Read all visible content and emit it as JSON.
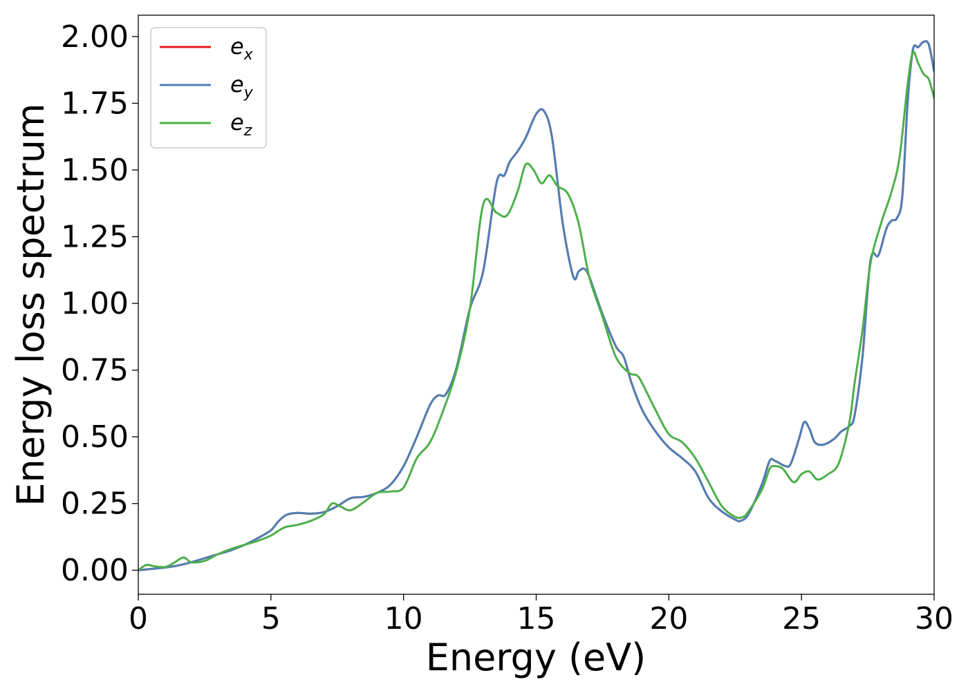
{
  "chart_data": {
    "type": "line",
    "xlabel": "Energy (eV)",
    "ylabel": "Energy loss spectrum",
    "xlim": [
      0,
      30
    ],
    "ylim": [
      -0.09,
      2.08
    ],
    "xticks": [
      "0",
      "5",
      "10",
      "15",
      "20",
      "25",
      "30"
    ],
    "yticks": [
      "0.00",
      "0.25",
      "0.50",
      "0.75",
      "1.00",
      "1.25",
      "1.50",
      "1.75",
      "2.00"
    ],
    "grid": false,
    "legend_position": "top-left",
    "series": [
      {
        "name": "e_x",
        "legend_base": "e",
        "legend_sub": "x",
        "color": "#e41a1c",
        "x": [
          0,
          0.5,
          1,
          1.5,
          2,
          2.5,
          3,
          3.5,
          4,
          4.5,
          5,
          5.3,
          5.6,
          6,
          6.5,
          7,
          7.5,
          8,
          8.5,
          9,
          9.5,
          10,
          10.5,
          11,
          11.3,
          11.6,
          12,
          12.5,
          13,
          13.5,
          13.8,
          14,
          14.3,
          14.6,
          15,
          15.3,
          15.6,
          16,
          16.4,
          16.6,
          16.8,
          17,
          17.5,
          18,
          18.3,
          18.6,
          19,
          19.5,
          20,
          20.5,
          21,
          21.5,
          22,
          22.5,
          22.7,
          23,
          23.5,
          23.8,
          24,
          24.4,
          24.6,
          24.9,
          25.1,
          25.3,
          25.5,
          25.8,
          26.2,
          26.5,
          26.8,
          27,
          27.3,
          27.6,
          27.9,
          28.2,
          28.4,
          28.6,
          28.8,
          29,
          29.2,
          29.4,
          29.6,
          29.8,
          30
        ],
        "y": [
          0,
          0.005,
          0.01,
          0.018,
          0.03,
          0.045,
          0.06,
          0.075,
          0.095,
          0.12,
          0.15,
          0.185,
          0.208,
          0.215,
          0.212,
          0.218,
          0.24,
          0.27,
          0.275,
          0.29,
          0.32,
          0.39,
          0.5,
          0.62,
          0.655,
          0.66,
          0.76,
          0.98,
          1.12,
          1.45,
          1.48,
          1.53,
          1.57,
          1.62,
          1.71,
          1.72,
          1.62,
          1.3,
          1.1,
          1.12,
          1.13,
          1.1,
          0.96,
          0.84,
          0.8,
          0.7,
          0.6,
          0.52,
          0.46,
          0.42,
          0.37,
          0.27,
          0.22,
          0.19,
          0.185,
          0.21,
          0.32,
          0.41,
          0.41,
          0.39,
          0.4,
          0.49,
          0.555,
          0.53,
          0.48,
          0.47,
          0.49,
          0.52,
          0.54,
          0.58,
          0.8,
          1.16,
          1.18,
          1.28,
          1.31,
          1.32,
          1.4,
          1.75,
          1.95,
          1.96,
          1.98,
          1.97,
          1.87
        ],
        "hidden_behind": "e_y"
      },
      {
        "name": "e_y",
        "legend_base": "e",
        "legend_sub": "y",
        "color": "#4e7fb4",
        "x": [
          0,
          0.5,
          1,
          1.5,
          2,
          2.5,
          3,
          3.5,
          4,
          4.5,
          5,
          5.3,
          5.6,
          6,
          6.5,
          7,
          7.5,
          8,
          8.5,
          9,
          9.5,
          10,
          10.5,
          11,
          11.3,
          11.6,
          12,
          12.5,
          13,
          13.5,
          13.8,
          14,
          14.3,
          14.6,
          15,
          15.3,
          15.6,
          16,
          16.4,
          16.6,
          16.8,
          17,
          17.5,
          18,
          18.3,
          18.6,
          19,
          19.5,
          20,
          20.5,
          21,
          21.5,
          22,
          22.5,
          22.7,
          23,
          23.5,
          23.8,
          24,
          24.4,
          24.6,
          24.9,
          25.1,
          25.3,
          25.5,
          25.8,
          26.2,
          26.5,
          26.8,
          27,
          27.3,
          27.6,
          27.9,
          28.2,
          28.4,
          28.6,
          28.8,
          29,
          29.2,
          29.4,
          29.6,
          29.8,
          30
        ],
        "y": [
          0,
          0.005,
          0.01,
          0.018,
          0.03,
          0.045,
          0.06,
          0.075,
          0.095,
          0.12,
          0.15,
          0.185,
          0.208,
          0.215,
          0.212,
          0.218,
          0.24,
          0.27,
          0.275,
          0.29,
          0.32,
          0.39,
          0.5,
          0.62,
          0.655,
          0.66,
          0.76,
          0.98,
          1.12,
          1.45,
          1.48,
          1.53,
          1.57,
          1.62,
          1.71,
          1.72,
          1.62,
          1.3,
          1.1,
          1.12,
          1.13,
          1.1,
          0.96,
          0.84,
          0.8,
          0.7,
          0.6,
          0.52,
          0.46,
          0.42,
          0.37,
          0.27,
          0.22,
          0.19,
          0.185,
          0.21,
          0.32,
          0.41,
          0.41,
          0.39,
          0.4,
          0.49,
          0.555,
          0.53,
          0.48,
          0.47,
          0.49,
          0.52,
          0.54,
          0.58,
          0.8,
          1.16,
          1.18,
          1.28,
          1.31,
          1.32,
          1.4,
          1.75,
          1.95,
          1.96,
          1.98,
          1.97,
          1.87
        ]
      },
      {
        "name": "e_z",
        "legend_base": "e",
        "legend_sub": "z",
        "color": "#4daf4a",
        "x": [
          0,
          0.3,
          0.6,
          1,
          1.3,
          1.7,
          2,
          2.5,
          3,
          3.5,
          4,
          4.5,
          5,
          5.5,
          6,
          6.5,
          7,
          7.3,
          7.6,
          8,
          8.5,
          9,
          9.5,
          10,
          10.5,
          11,
          11.5,
          12,
          12.5,
          13,
          13.5,
          13.9,
          14.3,
          14.6,
          14.9,
          15.2,
          15.5,
          15.8,
          16.2,
          16.6,
          17,
          17.5,
          18,
          18.5,
          18.8,
          19,
          19.5,
          20,
          20.5,
          21,
          21.5,
          22,
          22.5,
          22.8,
          23,
          23.5,
          23.8,
          24,
          24.3,
          24.7,
          25,
          25.3,
          25.6,
          26,
          26.4,
          26.8,
          27,
          27.3,
          27.6,
          28,
          28.4,
          28.7,
          29,
          29.2,
          29.4,
          29.6,
          29.8,
          30
        ],
        "y": [
          0,
          0.02,
          0.015,
          0.012,
          0.025,
          0.048,
          0.03,
          0.035,
          0.06,
          0.08,
          0.095,
          0.11,
          0.13,
          0.16,
          0.17,
          0.185,
          0.21,
          0.25,
          0.24,
          0.225,
          0.255,
          0.29,
          0.295,
          0.31,
          0.42,
          0.48,
          0.6,
          0.75,
          0.98,
          1.37,
          1.34,
          1.33,
          1.42,
          1.52,
          1.5,
          1.45,
          1.48,
          1.44,
          1.41,
          1.3,
          1.1,
          0.95,
          0.8,
          0.74,
          0.73,
          0.7,
          0.6,
          0.51,
          0.48,
          0.42,
          0.33,
          0.24,
          0.2,
          0.2,
          0.22,
          0.3,
          0.38,
          0.39,
          0.38,
          0.33,
          0.36,
          0.37,
          0.34,
          0.36,
          0.4,
          0.55,
          0.7,
          0.9,
          1.15,
          1.3,
          1.42,
          1.55,
          1.82,
          1.94,
          1.9,
          1.86,
          1.84,
          1.77
        ]
      }
    ]
  }
}
